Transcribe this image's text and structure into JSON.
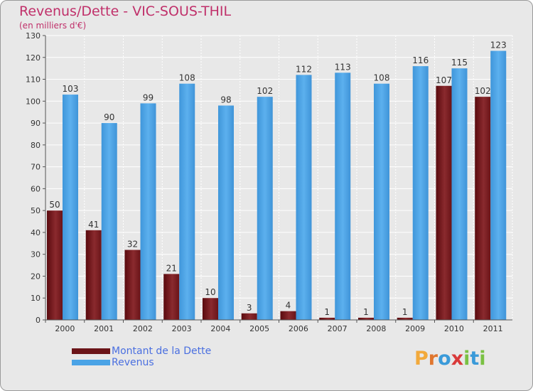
{
  "header": {
    "title": "Revenus/Dette - VIC-SOUS-THIL",
    "subtitle": "(en milliers d'€)"
  },
  "logo": {
    "letters": [
      "P",
      "r",
      "o",
      "x",
      "i",
      "t",
      "i"
    ],
    "colors": [
      "#f2a93b",
      "#e0762e",
      "#3a9ad9",
      "#d93a3a",
      "#7ac143",
      "#3a9ad9",
      "#7ac143"
    ]
  },
  "chart_data": {
    "type": "bar",
    "title": "Revenus/Dette - VIC-SOUS-THIL",
    "ylabel": "(en milliers d'€)",
    "xlabel": "",
    "categories": [
      "2000",
      "2001",
      "2002",
      "2003",
      "2004",
      "2005",
      "2006",
      "2007",
      "2008",
      "2009",
      "2010",
      "2011"
    ],
    "ylim": [
      0,
      130
    ],
    "yticks": [
      0,
      10,
      20,
      30,
      40,
      50,
      60,
      70,
      80,
      90,
      100,
      110,
      120,
      130
    ],
    "grid": true,
    "legend_position": "bottom-left",
    "series": [
      {
        "name": "Montant de la Dette",
        "color": "#7a1a1f",
        "values": [
          50,
          41,
          32,
          21,
          10,
          3,
          4,
          1,
          1,
          1,
          107,
          102
        ]
      },
      {
        "name": "Revenus",
        "color": "#4aa3e6",
        "values": [
          103,
          90,
          99,
          108,
          98,
          102,
          112,
          113,
          108,
          116,
          115,
          123
        ]
      }
    ]
  }
}
